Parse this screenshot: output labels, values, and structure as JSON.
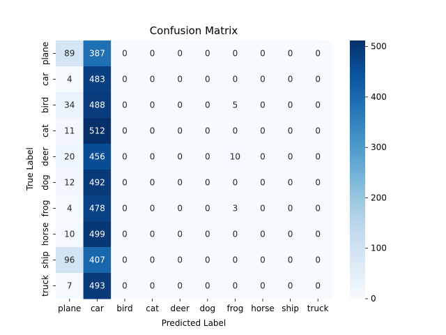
{
  "chart_data": {
    "type": "heatmap",
    "title": "Confusion Matrix",
    "xlabel": "Predicted Label",
    "ylabel": "True Label",
    "x_categories": [
      "plane",
      "car",
      "bird",
      "cat",
      "deer",
      "dog",
      "frog",
      "horse",
      "ship",
      "truck"
    ],
    "y_categories": [
      "plane",
      "car",
      "bird",
      "cat",
      "deer",
      "dog",
      "frog",
      "horse",
      "ship",
      "truck"
    ],
    "values": [
      [
        89,
        387,
        0,
        0,
        0,
        0,
        0,
        0,
        0,
        0
      ],
      [
        4,
        483,
        0,
        0,
        0,
        0,
        0,
        0,
        0,
        0
      ],
      [
        34,
        488,
        0,
        0,
        0,
        0,
        5,
        0,
        0,
        0
      ],
      [
        11,
        512,
        0,
        0,
        0,
        0,
        0,
        0,
        0,
        0
      ],
      [
        20,
        456,
        0,
        0,
        0,
        0,
        10,
        0,
        0,
        0
      ],
      [
        12,
        492,
        0,
        0,
        0,
        0,
        0,
        0,
        0,
        0
      ],
      [
        4,
        478,
        0,
        0,
        0,
        0,
        3,
        0,
        0,
        0
      ],
      [
        10,
        499,
        0,
        0,
        0,
        0,
        0,
        0,
        0,
        0
      ],
      [
        96,
        407,
        0,
        0,
        0,
        0,
        0,
        0,
        0,
        0
      ],
      [
        7,
        493,
        0,
        0,
        0,
        0,
        0,
        0,
        0,
        0
      ]
    ],
    "colorbar": {
      "colormap": "Blues",
      "range": [
        0,
        512
      ],
      "ticks": [
        0,
        100,
        200,
        300,
        400,
        500
      ]
    },
    "grid": false
  }
}
